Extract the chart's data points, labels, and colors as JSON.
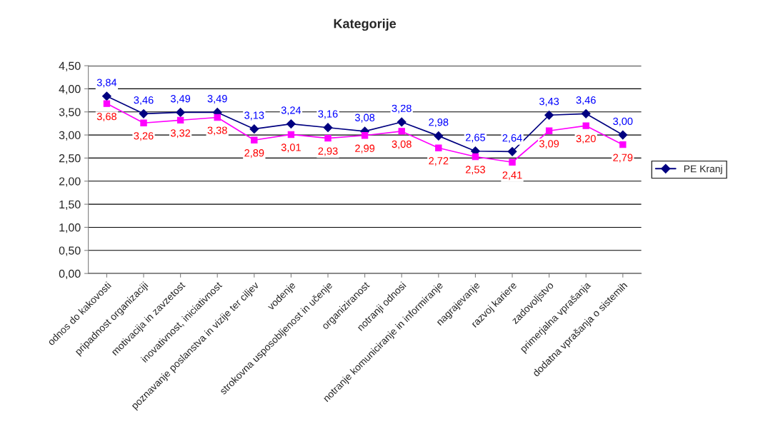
{
  "chart_data": {
    "type": "line",
    "title": "Kategorije",
    "categories": [
      "odnos do kakovosti",
      "pripadnost organizaciji",
      "motivacija in zavzetost",
      "inovativnost, iniciativnost",
      "poznavanje poslanstva in vizije ter ciljev",
      "vodenje",
      "strokovna usposobljenost in učenje",
      "organiziranost",
      "notranji odnosi",
      "notranje komuniciranje in informiranje",
      "nagrajevanje",
      "razvoj kariere",
      "zadovoljstvo",
      "primerjalna vprašanja",
      "dodatna vprašanja o sistemih"
    ],
    "series": [
      {
        "name": "PE Kranj",
        "color": "#000080",
        "marker": "diamond",
        "values": [
          3.84,
          3.46,
          3.49,
          3.49,
          3.13,
          3.24,
          3.16,
          3.08,
          3.28,
          2.98,
          2.65,
          2.64,
          3.43,
          3.46,
          3.0
        ],
        "value_labels": [
          "3,84",
          "3,46",
          "3,49",
          "3,49",
          "3,13",
          "3,24",
          "3,16",
          "3,08",
          "3,28",
          "2,98",
          "2,65",
          "2,64",
          "3,43",
          "3,46",
          "3,00"
        ]
      },
      {
        "color": "#ff00ff",
        "marker": "square",
        "values": [
          3.68,
          3.26,
          3.32,
          3.38,
          2.89,
          3.01,
          2.93,
          2.99,
          3.08,
          2.72,
          2.53,
          2.41,
          3.09,
          3.2,
          2.79
        ],
        "value_labels": [
          "3,68",
          "3,26",
          "3,32",
          "3,38",
          "2,89",
          "3,01",
          "2,93",
          "2,99",
          "3,08",
          "2,72",
          "2,53",
          "2,41",
          "3,09",
          "3,20",
          "2,79"
        ]
      }
    ],
    "ylim": [
      0,
      4.5
    ],
    "yticks": [
      {
        "value": 0,
        "label": "0,00"
      },
      {
        "value": 0.5,
        "label": "0,50"
      },
      {
        "value": 1,
        "label": "1,00"
      },
      {
        "value": 1.5,
        "label": "1,50"
      },
      {
        "value": 2,
        "label": "2,00"
      },
      {
        "value": 2.5,
        "label": "2,50"
      },
      {
        "value": 3,
        "label": "3,00"
      },
      {
        "value": 3.5,
        "label": "3,50"
      },
      {
        "value": 4,
        "label": "4,00"
      },
      {
        "value": 4.5,
        "label": "4,50"
      }
    ],
    "grid": "y",
    "legend": "right",
    "line_style": "solid"
  }
}
